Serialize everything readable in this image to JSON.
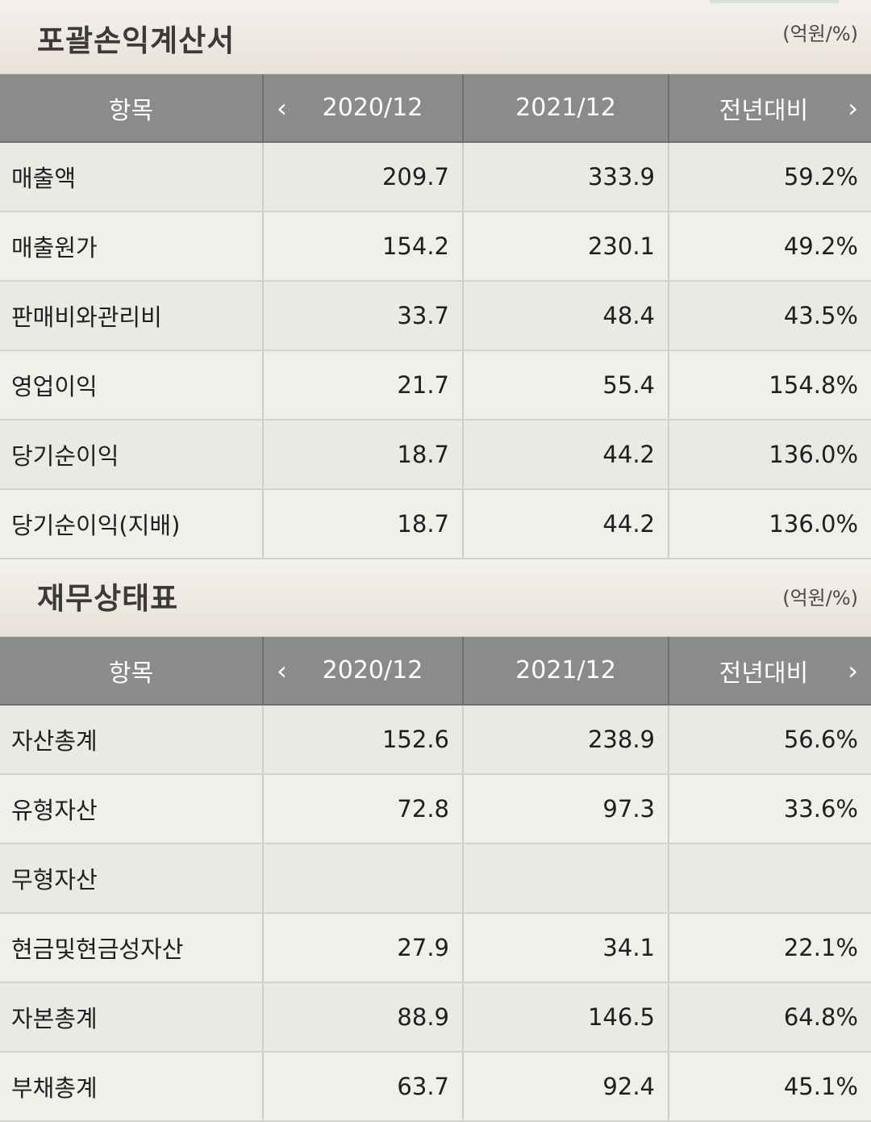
{
  "income": {
    "title": "포괄손익계산서",
    "unit": "(억원/%)",
    "headers": [
      "항목",
      "2020/12",
      "2021/12",
      "전년대비"
    ],
    "rows": [
      [
        "매출액",
        "209.7",
        "333.9",
        "59.2%"
      ],
      [
        "매출원가",
        "154.2",
        "230.1",
        "49.2%"
      ],
      [
        "판매비와관리비",
        "33.7",
        "48.4",
        "43.5%"
      ],
      [
        "영업이익",
        "21.7",
        "55.4",
        "154.8%"
      ],
      [
        "당기순이익",
        "18.7",
        "44.2",
        "136.0%"
      ],
      [
        "당기순이익(지배)",
        "18.7",
        "44.2",
        "136.0%"
      ]
    ]
  },
  "balance": {
    "title": "재무상태표",
    "unit": "(억원/%)",
    "headers": [
      "항목",
      "2020/12",
      "2021/12",
      "전년대비"
    ],
    "rows": [
      [
        "자산총계",
        "152.6",
        "238.9",
        "56.6%"
      ],
      [
        "유형자산",
        "72.8",
        "97.3",
        "33.6%"
      ],
      [
        "무형자산",
        "",
        "",
        ""
      ],
      [
        "현금및현금성자산",
        "27.9",
        "34.1",
        "22.1%"
      ],
      [
        "자본총계",
        "88.9",
        "146.5",
        "64.8%"
      ],
      [
        "부채총계",
        "63.7",
        "92.4",
        "45.1%"
      ]
    ]
  },
  "icons": {
    "prev": "chevron-left-icon",
    "next": "chevron-right-icon"
  }
}
